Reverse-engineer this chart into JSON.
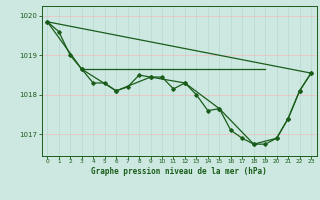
{
  "background_color": "#cce8e0",
  "grid_color_h": "#e8c8c8",
  "grid_color_v": "#b8d8d0",
  "line_color": "#1a5c1a",
  "title": "Graphe pression niveau de la mer (hPa)",
  "ylabel_values": [
    1017,
    1018,
    1019,
    1020
  ],
  "xlim": [
    -0.5,
    23.5
  ],
  "ylim": [
    1016.45,
    1020.25
  ],
  "series1": [
    [
      0,
      1019.85
    ],
    [
      1,
      1019.6
    ],
    [
      2,
      1019.0
    ],
    [
      3,
      1018.65
    ],
    [
      4,
      1018.3
    ],
    [
      5,
      1018.3
    ],
    [
      6,
      1018.1
    ],
    [
      7,
      1018.2
    ],
    [
      8,
      1018.5
    ],
    [
      9,
      1018.45
    ],
    [
      10,
      1018.45
    ],
    [
      11,
      1018.15
    ],
    [
      12,
      1018.3
    ],
    [
      13,
      1018.0
    ],
    [
      14,
      1017.6
    ],
    [
      15,
      1017.65
    ],
    [
      16,
      1017.1
    ],
    [
      17,
      1016.9
    ],
    [
      18,
      1016.75
    ],
    [
      19,
      1016.75
    ],
    [
      20,
      1016.9
    ],
    [
      21,
      1017.4
    ],
    [
      22,
      1018.1
    ],
    [
      23,
      1018.55
    ]
  ],
  "series2": [
    [
      0,
      1019.85
    ],
    [
      3,
      1018.65
    ],
    [
      6,
      1018.1
    ],
    [
      9,
      1018.45
    ],
    [
      12,
      1018.3
    ],
    [
      15,
      1017.65
    ],
    [
      18,
      1016.75
    ],
    [
      20,
      1016.9
    ],
    [
      21,
      1017.4
    ],
    [
      22,
      1018.1
    ],
    [
      23,
      1018.55
    ]
  ],
  "regression_line": [
    [
      0,
      1019.85
    ],
    [
      23,
      1018.55
    ]
  ],
  "flat_line": [
    [
      3,
      1018.65
    ],
    [
      19,
      1018.65
    ]
  ],
  "x_ticks": [
    0,
    1,
    2,
    3,
    4,
    5,
    6,
    7,
    8,
    9,
    10,
    11,
    12,
    13,
    14,
    15,
    16,
    17,
    18,
    19,
    20,
    21,
    22,
    23
  ]
}
